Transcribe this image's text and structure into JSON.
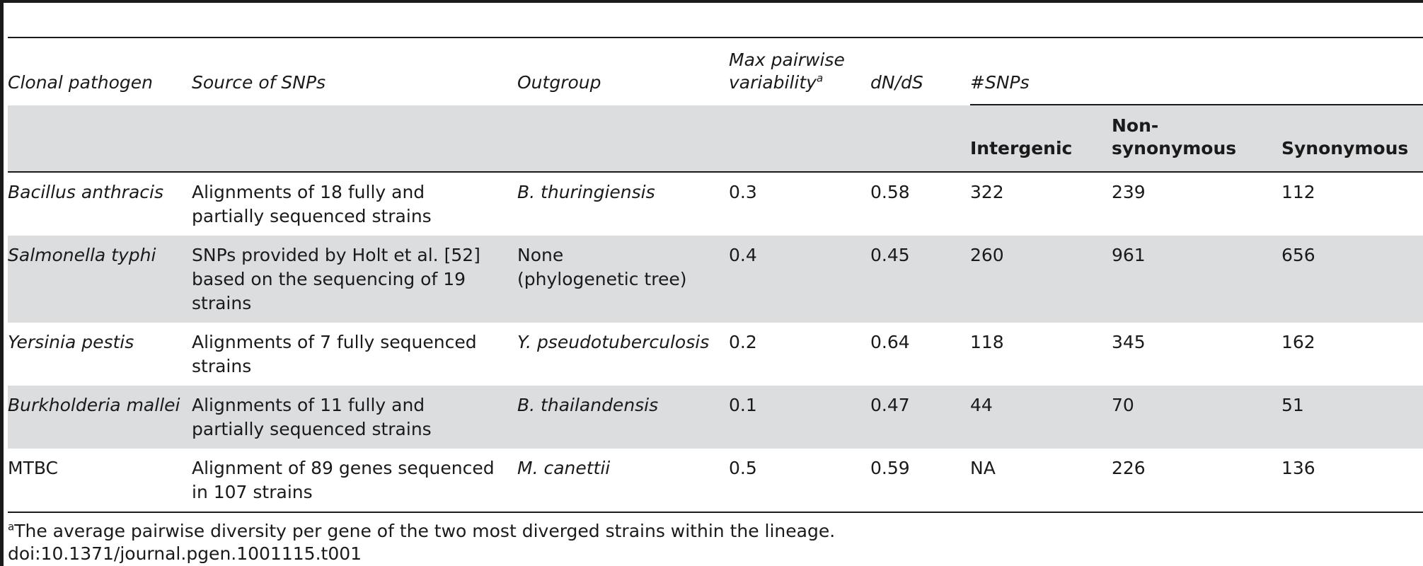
{
  "header": {
    "clonal_pathogen": "Clonal pathogen",
    "source_of_snps": "Source of SNPs",
    "outgroup": "Outgroup",
    "max_pairwise_line1": "Max pairwise",
    "max_pairwise_line2": "variability",
    "max_pairwise_sup": "a",
    "dnds": "dN/dS",
    "snps": "#SNPs",
    "intergenic": "Intergenic",
    "non_synonymous_line1": "Non-",
    "non_synonymous_line2": "synonymous",
    "synonymous": "Synonymous"
  },
  "rows": [
    {
      "pathogen": "Bacillus anthracis",
      "source": [
        "Alignments of 18 fully and",
        "partially sequenced strains"
      ],
      "outgroup": [
        "B. thuringiensis"
      ],
      "max_var": "0.3",
      "dnds": "0.58",
      "intergenic": "322",
      "nonsyn": "239",
      "syn": "112"
    },
    {
      "pathogen": "Salmonella typhi",
      "source": [
        "SNPs provided by Holt et al. [52]",
        "based on the sequencing of 19",
        "strains"
      ],
      "outgroup": [
        "None",
        "(phylogenetic tree)"
      ],
      "max_var": "0.4",
      "dnds": "0.45",
      "intergenic": "260",
      "nonsyn": "961",
      "syn": "656"
    },
    {
      "pathogen": "Yersinia pestis",
      "source": [
        "Alignments of 7 fully sequenced",
        "strains"
      ],
      "outgroup": [
        "Y. pseudotuberculosis"
      ],
      "max_var": "0.2",
      "dnds": "0.64",
      "intergenic": "118",
      "nonsyn": "345",
      "syn": "162"
    },
    {
      "pathogen": "Burkholderia mallei",
      "source": [
        "Alignments of 11 fully and",
        "partially sequenced strains"
      ],
      "outgroup": [
        "B. thailandensis"
      ],
      "max_var": "0.1",
      "dnds": "0.47",
      "intergenic": "44",
      "nonsyn": "70",
      "syn": "51"
    },
    {
      "pathogen": "MTBC",
      "source": [
        "Alignment of 89 genes sequenced",
        "in 107 strains"
      ],
      "outgroup": [
        "M. canettii"
      ],
      "max_var": "0.5",
      "dnds": "0.59",
      "intergenic": "NA",
      "nonsyn": "226",
      "syn": "136"
    }
  ],
  "footnote": {
    "marker": "a",
    "text": "The average pairwise diversity per gene of the two most diverged strains within the lineage."
  },
  "doi": "doi:10.1371/journal.pgen.1001115.t001"
}
